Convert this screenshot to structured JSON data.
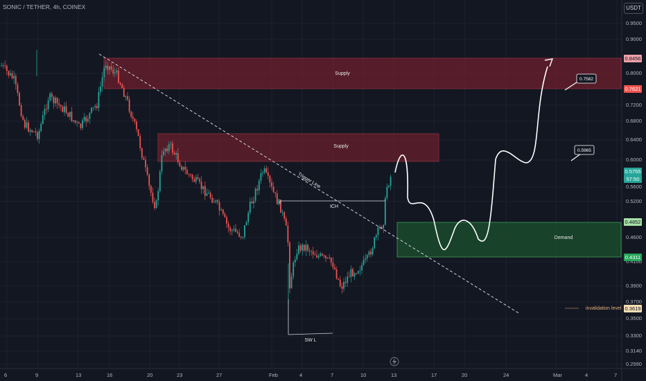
{
  "header": {
    "title": "SONIC / TETHER, 4h, COINEX",
    "currency": "USDT"
  },
  "y_ticks": [
    "0.9500",
    "0.9000",
    "0.8000",
    "0.7200",
    "0.6800",
    "0.6400",
    "0.6000",
    "0.5600",
    "0.5200",
    "0.4600",
    "0.4100",
    "0.3900",
    "0.3700",
    "0.3500",
    "0.3300",
    "0.3140",
    "0.2990"
  ],
  "price_labels": {
    "top_supply": "0.8456",
    "supply_low": "0.7621",
    "current": "0.5755",
    "countdown": "57:50",
    "demand_top": "0.4852",
    "demand_bottom": "0.4311",
    "invalidation": "0.3619"
  },
  "x_ticks": [
    "6",
    "9",
    "13",
    "16",
    "20",
    "23",
    "27",
    "Feb",
    "4",
    "7",
    "10",
    "13",
    "17",
    "20",
    "24",
    "Mar",
    "4",
    "7"
  ],
  "annotations": {
    "supply_upper": "Supply",
    "supply_lower": "Supply",
    "demand": "Demand",
    "trigger": "Trigger Line",
    "ich": "ICH",
    "swl": "SW L",
    "invalidation": "invalidation level",
    "target1": "0.7582",
    "target2": "0.5965"
  },
  "colors": {
    "bg": "#131722",
    "up": "#26a69a",
    "down": "#ef5350",
    "supply": "#6d1f2c",
    "demand": "#1b4a2b"
  }
}
